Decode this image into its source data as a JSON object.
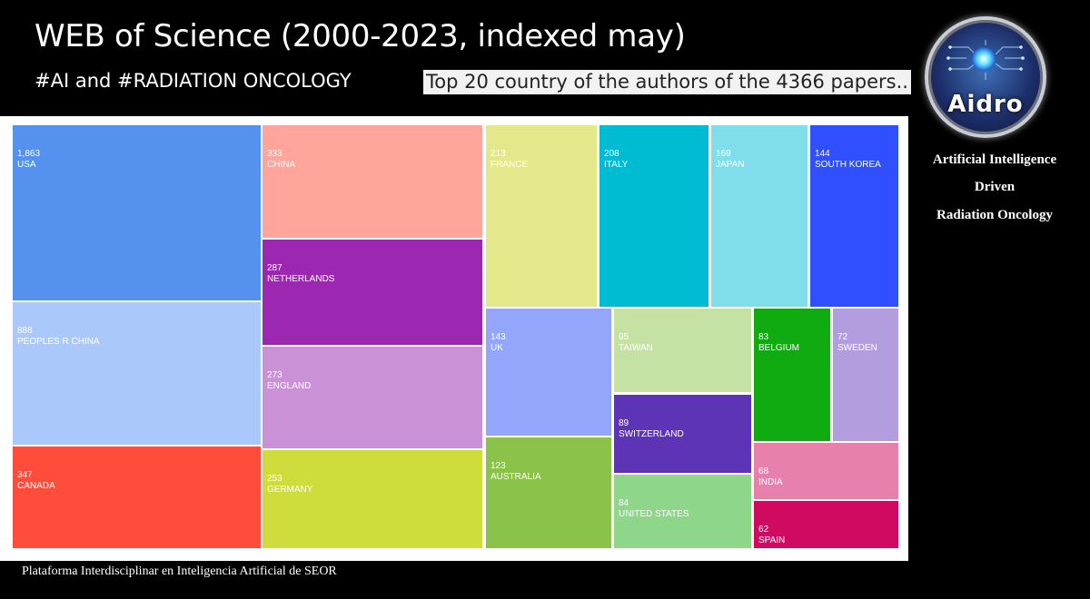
{
  "header": {
    "title": "WEB of Science (2000-2023, indexed may)",
    "hashtags": "#AI and #RADIATION ONCOLOGY",
    "subtitle": "Top 20 country of the authors of the 4366 papers.."
  },
  "logo": {
    "text": "Aidro",
    "icon": "circuit-eye-icon"
  },
  "side_text": {
    "line1": "Artificial Intelligence",
    "line2": "Driven",
    "line3": "Radiation Oncology"
  },
  "footer": {
    "text": "Plataforma Interdisciplinar en Inteligencia Artificial de SEOR"
  },
  "chart_data": {
    "type": "treemap",
    "title": "Top 20 country of the authors of the 4366 papers..",
    "tiles": [
      {
        "label": "USA",
        "value": 1863,
        "display": "1,863",
        "color": "#5591ee"
      },
      {
        "label": "PEOPLES R CHINA",
        "value": 888,
        "display": "888",
        "color": "#aac8f9"
      },
      {
        "label": "CANADA",
        "value": 347,
        "display": "347",
        "color": "#ff4c3b"
      },
      {
        "label": "CHINA",
        "value": 333,
        "display": "333",
        "color": "#ffa59c"
      },
      {
        "label": "NETHERLANDS",
        "value": 287,
        "display": "287",
        "color": "#9c27b1"
      },
      {
        "label": "ENGLAND",
        "value": 273,
        "display": "273",
        "color": "#ca91d6"
      },
      {
        "label": "GERMANY",
        "value": 253,
        "display": "253",
        "color": "#cedd3c"
      },
      {
        "label": "FRANCE",
        "value": 213,
        "display": "213",
        "color": "#e3e98a"
      },
      {
        "label": "ITALY",
        "value": 208,
        "display": "208",
        "color": "#00bcd3"
      },
      {
        "label": "JAPAN",
        "value": 169,
        "display": "169",
        "color": "#80deea"
      },
      {
        "label": "SOUTH KOREA",
        "value": 144,
        "display": "144",
        "color": "#304ffe"
      },
      {
        "label": "UK",
        "value": 143,
        "display": "143",
        "color": "#94a6fc"
      },
      {
        "label": "AUSTRALIA",
        "value": 123,
        "display": "123",
        "color": "#8bc34a"
      },
      {
        "label": "TAIWAN",
        "value": 95,
        "display": "95",
        "color": "#c5e2a4"
      },
      {
        "label": "SWITZERLAND",
        "value": 89,
        "display": "89",
        "color": "#5e34b6"
      },
      {
        "label": "UNITED STATES",
        "value": 84,
        "display": "84",
        "color": "#8ed68a"
      },
      {
        "label": "BELGIUM",
        "value": 83,
        "display": "83",
        "color": "#10ab10"
      },
      {
        "label": "SWEDEN",
        "value": 72,
        "display": "72",
        "color": "#b29ddf"
      },
      {
        "label": "INDIA",
        "value": 68,
        "display": "68",
        "color": "#e780ab"
      },
      {
        "label": "SPAIN",
        "value": 62,
        "display": "62",
        "color": "#d00961"
      }
    ]
  }
}
